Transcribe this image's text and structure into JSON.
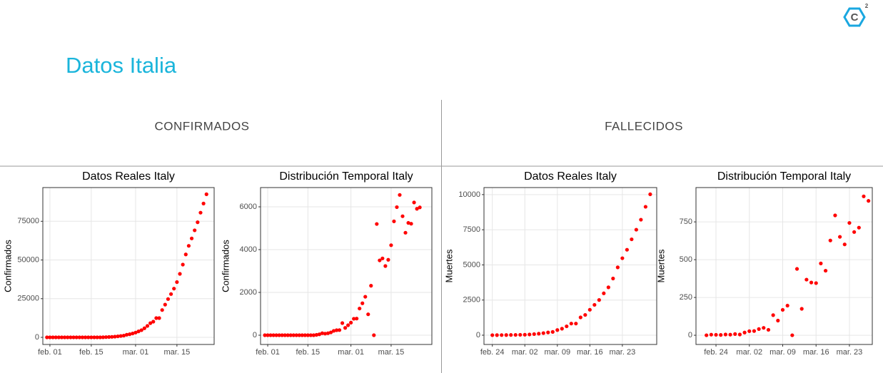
{
  "title": "Datos Italia",
  "sections": [
    "CONFIRMADOS",
    "FALLECIDOS"
  ],
  "logo": {
    "letter": "C",
    "sup": "2"
  },
  "chart_data": [
    {
      "type": "scatter",
      "title": "Datos Reales Italy",
      "ylabel": "Confirmados",
      "color": "#ff0000",
      "grid": true,
      "xlim": [
        29.6,
        87.6
      ],
      "ylim": [
        -4600,
        96800
      ],
      "xticks": [
        {
          "value": 32,
          "label": "feb. 01"
        },
        {
          "value": 46,
          "label": "feb. 15"
        },
        {
          "value": 61,
          "label": "mar. 01"
        },
        {
          "value": 75,
          "label": "mar. 15"
        }
      ],
      "yticks": [
        0,
        25000,
        50000,
        75000
      ],
      "x": [
        31,
        32,
        33,
        34,
        35,
        36,
        37,
        38,
        39,
        40,
        41,
        42,
        43,
        44,
        45,
        46,
        47,
        48,
        49,
        50,
        51,
        52,
        53,
        54,
        55,
        56,
        57,
        58,
        59,
        60,
        61,
        62,
        63,
        64,
        65,
        66,
        67,
        68,
        69,
        70,
        71,
        72,
        73,
        74,
        75,
        76,
        77,
        78,
        79,
        80,
        81,
        82,
        83,
        84,
        85
      ],
      "values": [
        2,
        2,
        2,
        2,
        2,
        2,
        2,
        3,
        3,
        3,
        3,
        3,
        3,
        3,
        3,
        3,
        3,
        3,
        20,
        62,
        155,
        229,
        322,
        453,
        655,
        888,
        1128,
        1694,
        2036,
        2502,
        3089,
        3858,
        4636,
        5883,
        7375,
        9172,
        10149,
        12462,
        12462,
        17660,
        21157,
        24747,
        27980,
        31506,
        35713,
        41035,
        47021,
        53578,
        59138,
        63927,
        69176,
        74386,
        80589,
        86498,
        92472
      ]
    },
    {
      "type": "scatter",
      "title": "Distribución Temporal Italy",
      "ylabel": "Confirmados",
      "color": "#ff0000",
      "grid": true,
      "xlim": [
        29.5,
        89.2
      ],
      "ylim": [
        -433,
        6900
      ],
      "xticks": [
        {
          "value": 32,
          "label": "feb. 01"
        },
        {
          "value": 46,
          "label": "feb. 15"
        },
        {
          "value": 61,
          "label": "mar. 01"
        },
        {
          "value": 75,
          "label": "mar. 15"
        }
      ],
      "yticks": [
        0,
        2000,
        4000,
        6000
      ],
      "x": [
        31,
        32,
        33,
        34,
        35,
        36,
        37,
        38,
        39,
        40,
        41,
        42,
        43,
        44,
        45,
        46,
        47,
        48,
        49,
        50,
        51,
        52,
        53,
        54,
        55,
        56,
        57,
        58,
        59,
        60,
        61,
        62,
        63,
        64,
        65,
        66,
        67,
        68,
        69,
        70,
        71,
        72,
        73,
        74,
        75,
        76,
        77,
        78,
        79,
        80,
        81,
        82,
        83,
        84,
        85
      ],
      "values": [
        0,
        0,
        0,
        0,
        0,
        0,
        0,
        1,
        0,
        0,
        0,
        0,
        0,
        0,
        0,
        0,
        0,
        0,
        17,
        42,
        93,
        74,
        93,
        131,
        202,
        233,
        240,
        566,
        342,
        466,
        587,
        769,
        778,
        1247,
        1492,
        1797,
        977,
        2313,
        0,
        5198,
        3497,
        3590,
        3233,
        3526,
        4207,
        5322,
        5986,
        6557,
        5560,
        4789,
        5249,
        5210,
        6203,
        5909,
        5974
      ]
    },
    {
      "type": "scatter",
      "title": "Datos Reales Italy",
      "ylabel": "Muertes",
      "color": "#ff0000",
      "grid": true,
      "xlim": [
        53.2,
        90.4
      ],
      "ylim": [
        -660,
        10500
      ],
      "xticks": [
        {
          "value": 55,
          "label": "feb. 24"
        },
        {
          "value": 62,
          "label": "mar. 02"
        },
        {
          "value": 69,
          "label": "mar. 09"
        },
        {
          "value": 76,
          "label": "mar. 16"
        },
        {
          "value": 83,
          "label": "mar. 23"
        }
      ],
      "yticks": [
        0,
        2500,
        5000,
        7500,
        10000
      ],
      "x": [
        55,
        56,
        57,
        58,
        59,
        60,
        61,
        62,
        63,
        64,
        65,
        66,
        67,
        68,
        69,
        70,
        71,
        72,
        73,
        74,
        75,
        76,
        77,
        78,
        79,
        80,
        81,
        82,
        83,
        84,
        85,
        86,
        87,
        88,
        89
      ],
      "values": [
        3,
        7,
        10,
        12,
        17,
        21,
        29,
        34,
        52,
        79,
        107,
        148,
        197,
        233,
        366,
        463,
        631,
        827,
        827,
        1266,
        1441,
        1809,
        2158,
        2503,
        2978,
        3405,
        4032,
        4825,
        5476,
        6077,
        6820,
        7503,
        8215,
        9134,
        10023
      ]
    },
    {
      "type": "scatter",
      "title": "Distribución Temporal Italy",
      "ylabel": "Muertes",
      "color": "#ff0000",
      "grid": true,
      "xlim": [
        50.8,
        87.8
      ],
      "ylim": [
        -61,
        977
      ],
      "xticks": [
        {
          "value": 55,
          "label": "feb. 24"
        },
        {
          "value": 62,
          "label": "mar. 02"
        },
        {
          "value": 69,
          "label": "mar. 09"
        },
        {
          "value": 76,
          "label": "mar. 16"
        },
        {
          "value": 83,
          "label": "mar. 23"
        }
      ],
      "yticks": [
        0,
        250,
        500,
        750
      ],
      "x": [
        53,
        54,
        55,
        56,
        57,
        58,
        59,
        60,
        61,
        62,
        63,
        64,
        65,
        66,
        67,
        68,
        69,
        70,
        71,
        72,
        73,
        74,
        75,
        76,
        77,
        78,
        79,
        80,
        81,
        82,
        83,
        84,
        85,
        86,
        87
      ],
      "values": [
        0,
        4,
        3,
        2,
        5,
        4,
        8,
        5,
        18,
        27,
        28,
        41,
        49,
        36,
        133,
        97,
        168,
        196,
        0,
        439,
        175,
        368,
        349,
        345,
        475,
        427,
        627,
        793,
        651,
        601,
        743,
        683,
        712,
        919,
        889
      ]
    }
  ]
}
